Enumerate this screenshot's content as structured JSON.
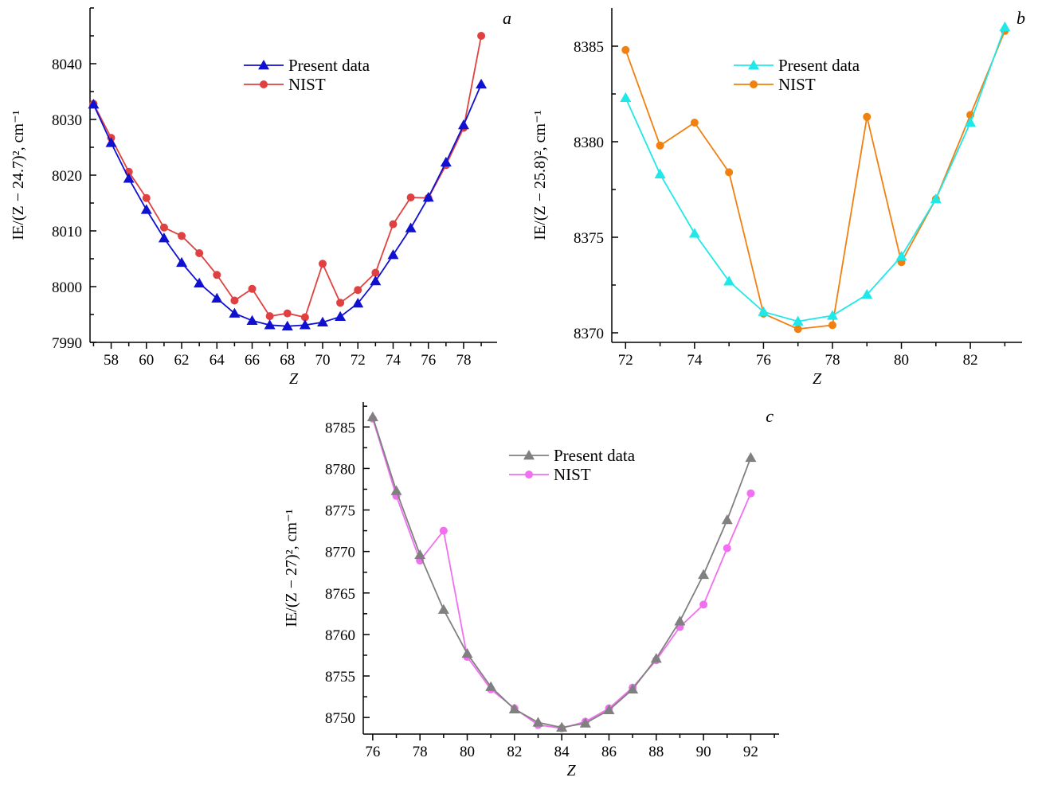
{
  "chart_data": [
    {
      "type": "line",
      "panel_label": "a",
      "xlabel": "Z",
      "ylabel": "IE/(Z − 24.7)², cm⁻¹",
      "xlim": [
        56.8,
        79.9
      ],
      "ylim": [
        7990,
        8050
      ],
      "xticks": [
        58,
        60,
        62,
        64,
        66,
        68,
        70,
        72,
        74,
        76,
        78
      ],
      "yticks": [
        7990,
        8000,
        8010,
        8020,
        8030,
        8040
      ],
      "legend_position": "top-center",
      "x": [
        57,
        58,
        59,
        60,
        61,
        62,
        63,
        64,
        65,
        66,
        67,
        68,
        69,
        70,
        71,
        72,
        73,
        74,
        75,
        76,
        77,
        78,
        79
      ],
      "series": [
        {
          "name": "Present data",
          "marker": "triangle",
          "color": "#1010d0",
          "values": [
            8032.7,
            8025.8,
            8019.4,
            8013.8,
            8008.7,
            8004.3,
            8000.6,
            7997.9,
            7995.2,
            7993.9,
            7993.1,
            7992.9,
            7993.1,
            7993.6,
            7994.6,
            7997.0,
            8001.0,
            8005.7,
            8010.5,
            8016.0,
            8022.3,
            8029.0,
            8036.3
          ]
        },
        {
          "name": "NIST",
          "marker": "circle",
          "color": "#e04040",
          "values": [
            8032.8,
            8026.7,
            8020.6,
            8015.9,
            8010.6,
            8009.1,
            8006.0,
            8002.1,
            7997.5,
            7999.6,
            7994.7,
            7995.2,
            7994.5,
            8004.1,
            7997.1,
            7999.4,
            8002.5,
            8011.2,
            8016.0,
            8015.9,
            8021.8,
            8028.5,
            8045.0
          ]
        }
      ]
    },
    {
      "type": "line",
      "panel_label": "b",
      "xlabel": "Z",
      "ylabel": "IE/(Z − 25.8)², cm⁻¹",
      "xlim": [
        71.6,
        83.5
      ],
      "ylim": [
        8369.5,
        8387
      ],
      "xticks": [
        72,
        74,
        76,
        78,
        80,
        82
      ],
      "yticks": [
        8370,
        8375,
        8380,
        8385
      ],
      "legend_position": "top-center",
      "x": [
        72,
        73,
        74,
        75,
        76,
        77,
        78,
        79,
        80,
        81,
        82,
        83
      ],
      "series": [
        {
          "name": "Present data",
          "marker": "triangle",
          "color": "#20e8e8",
          "values": [
            8382.3,
            8378.3,
            8375.2,
            8372.7,
            8371.1,
            8370.6,
            8370.9,
            8372.0,
            8374.0,
            8377.0,
            8381.0,
            8386.0
          ]
        },
        {
          "name": "NIST",
          "marker": "circle",
          "color": "#f08010",
          "values": [
            8384.8,
            8379.8,
            8381.0,
            8378.4,
            8371.0,
            8370.2,
            8370.4,
            8381.3,
            8373.7,
            8377.0,
            8381.4,
            8385.8
          ]
        }
      ]
    },
    {
      "type": "line",
      "panel_label": "c",
      "xlabel": "Z",
      "ylabel": "IE/(Z − 27)², cm⁻¹",
      "xlim": [
        75.6,
        93.2
      ],
      "ylim": [
        8748,
        8788
      ],
      "xticks": [
        76,
        78,
        80,
        82,
        84,
        86,
        88,
        90,
        92
      ],
      "yticks": [
        8750,
        8755,
        8760,
        8765,
        8770,
        8775,
        8780,
        8785
      ],
      "legend_position": "top-center",
      "x": [
        76,
        77,
        78,
        79,
        80,
        81,
        82,
        83,
        84,
        85,
        86,
        87,
        88,
        89,
        90,
        91,
        92
      ],
      "series": [
        {
          "name": "Present data",
          "marker": "triangle",
          "color": "#808080",
          "values": [
            8786.2,
            8777.3,
            8769.6,
            8763.0,
            8757.7,
            8753.7,
            8751.0,
            8749.4,
            8748.8,
            8749.3,
            8750.9,
            8753.4,
            8757.1,
            8761.6,
            8767.2,
            8773.8,
            8781.3
          ]
        },
        {
          "name": "NIST",
          "marker": "circle",
          "color": "#f070f0",
          "values": [
            8786.0,
            8776.7,
            8768.9,
            8772.5,
            8757.3,
            8753.4,
            8751.1,
            8749.1,
            8748.7,
            8749.5,
            8751.1,
            8753.6,
            8756.9,
            8760.9,
            8763.6,
            8770.4,
            8777.0
          ]
        }
      ]
    }
  ]
}
